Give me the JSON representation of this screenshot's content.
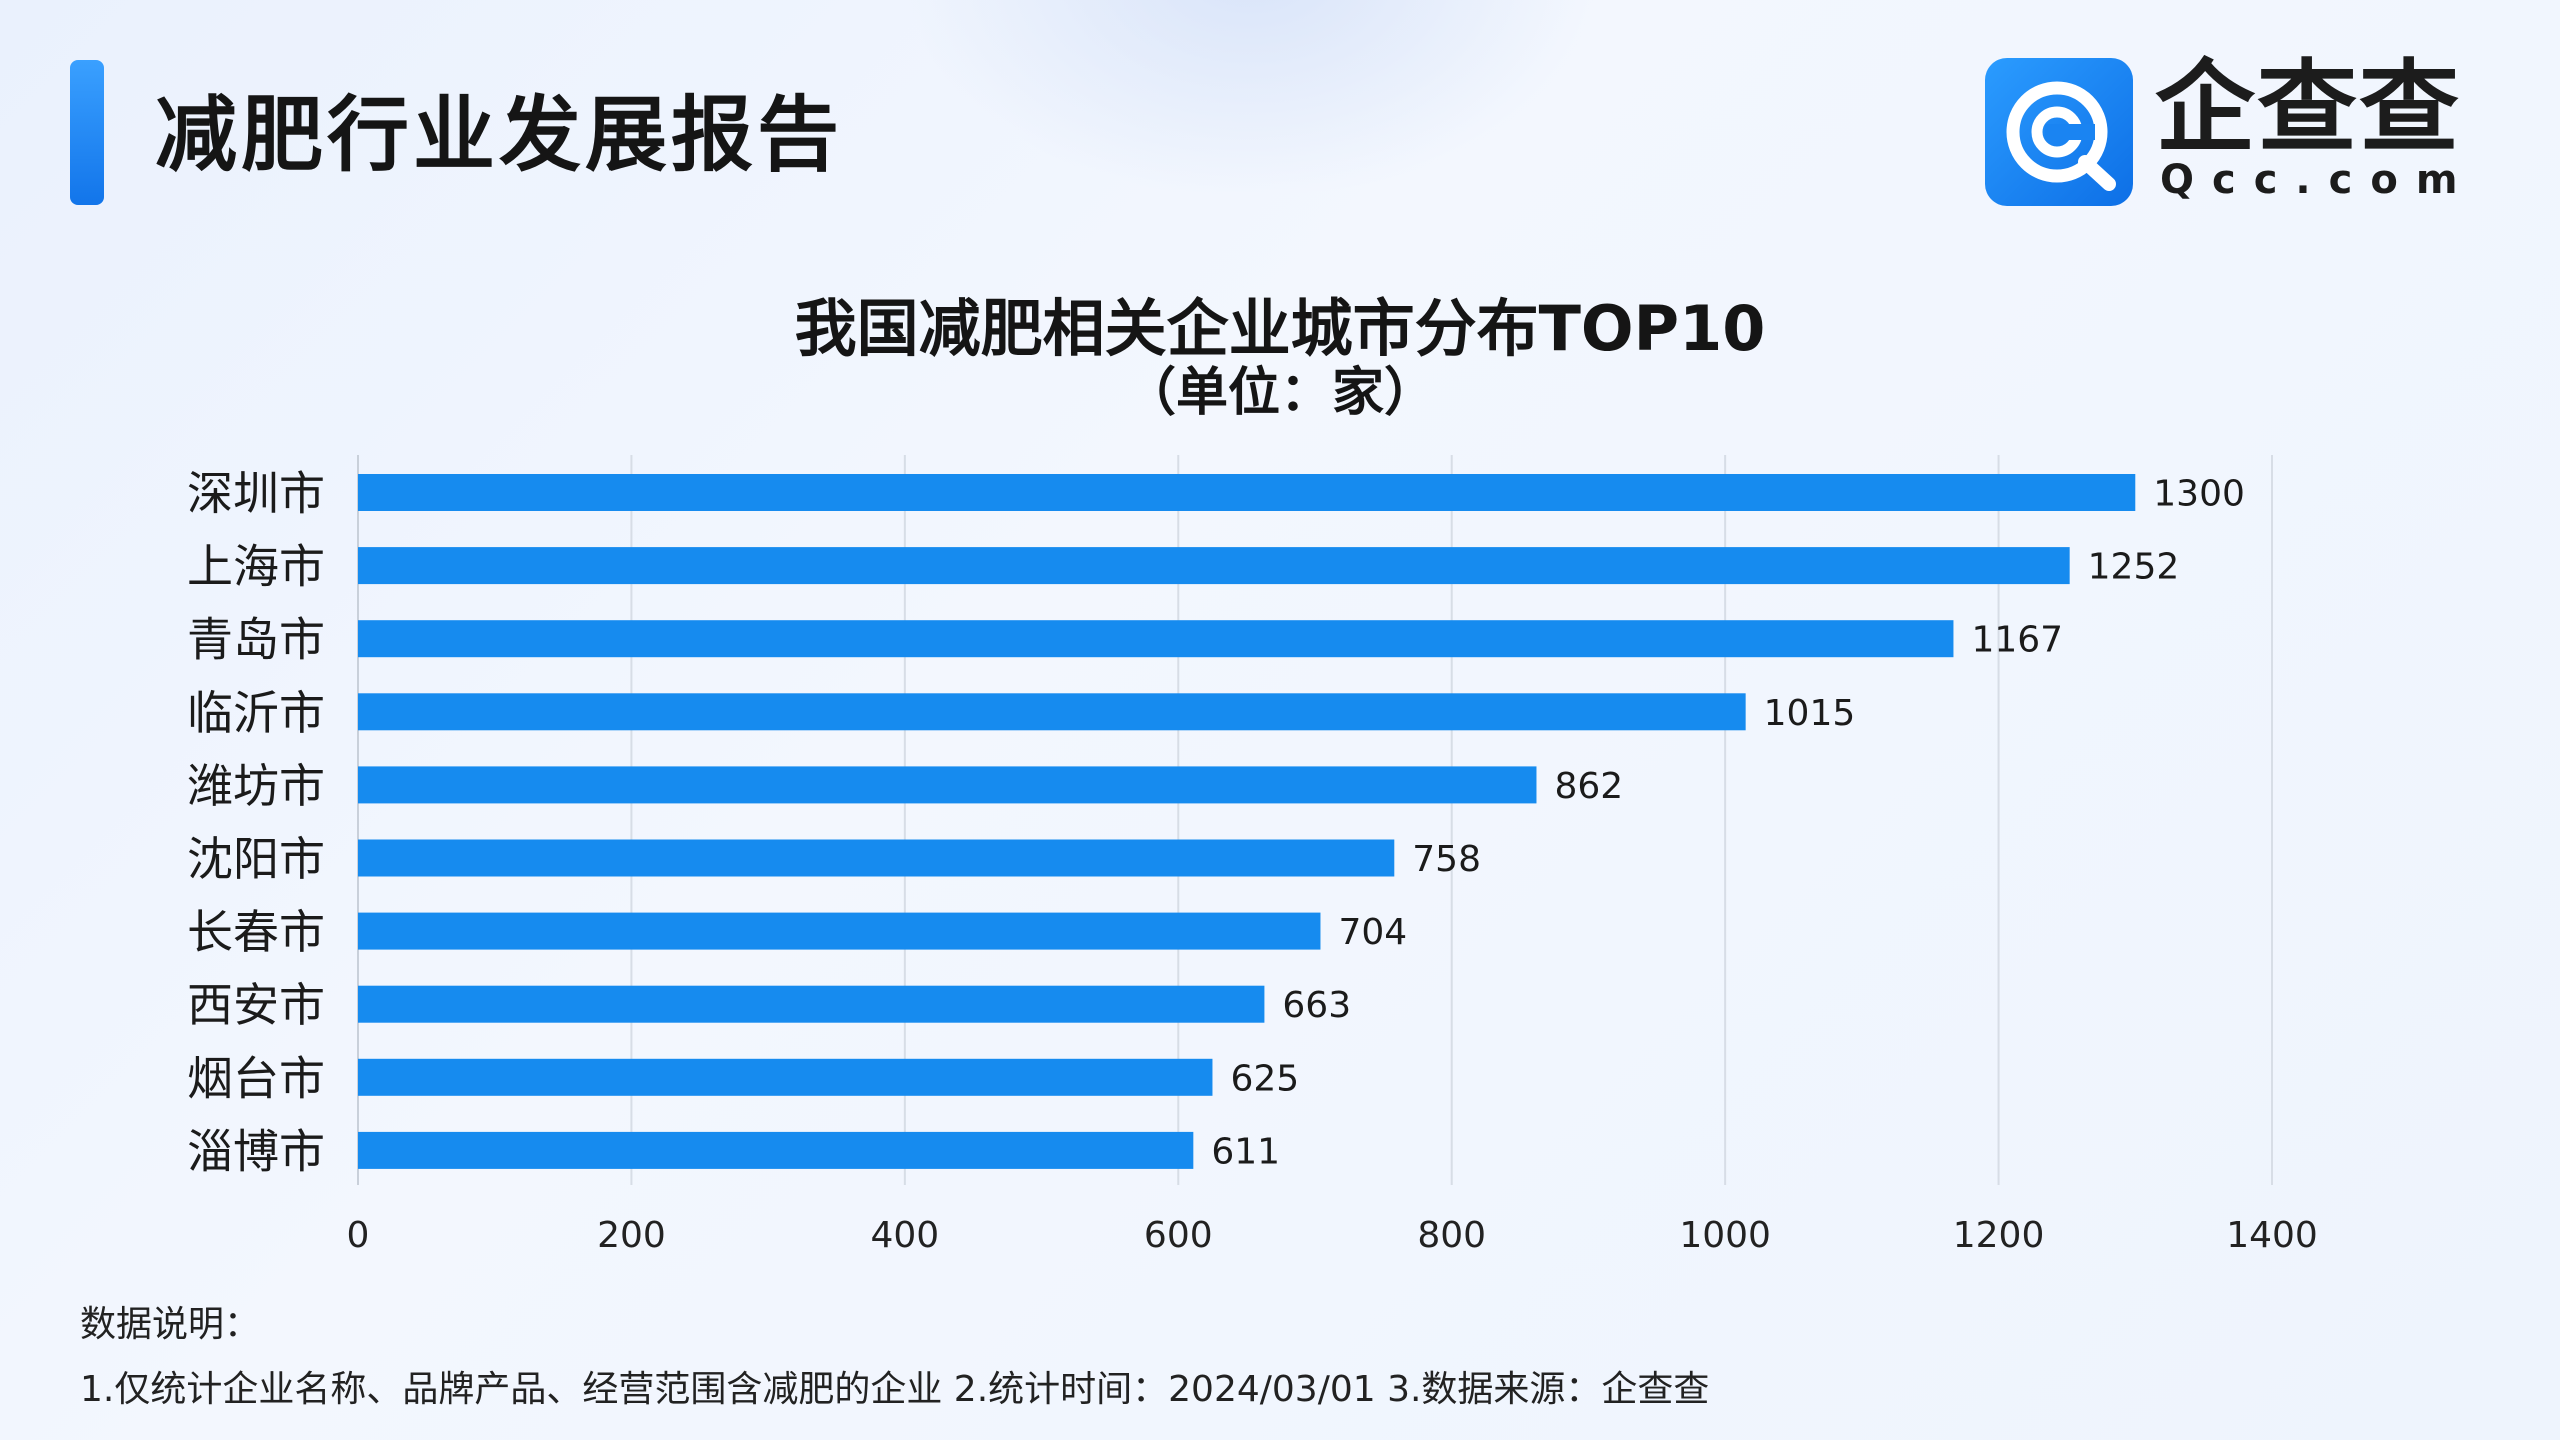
{
  "header": {
    "title": "减肥行业发展报告",
    "logo_text": "企查查",
    "logo_sub": "Qcc.com"
  },
  "chart_title": "我国减肥相关企业城市分布TOP10",
  "chart_subtitle": "（单位：家）",
  "chart_data": {
    "type": "bar",
    "orientation": "horizontal",
    "title": "我国减肥相关企业城市分布TOP10",
    "subtitle": "（单位：家）",
    "categories": [
      "深圳市",
      "上海市",
      "青岛市",
      "临沂市",
      "潍坊市",
      "沈阳市",
      "长春市",
      "西安市",
      "烟台市",
      "淄博市"
    ],
    "values": [
      1300,
      1252,
      1167,
      1015,
      862,
      758,
      704,
      663,
      625,
      611
    ],
    "xlim": [
      0,
      1400
    ],
    "xticks": [
      0,
      200,
      400,
      600,
      800,
      1000,
      1200,
      1400
    ],
    "grid": true,
    "bar_color": "#168bef",
    "data_labels": true
  },
  "notes": {
    "title": "数据说明：",
    "body": "1.仅统计企业名称、品牌产品、经营范围含减肥的企业   2.统计时间：2024/03/01    3.数据来源：企查查"
  },
  "colors": {
    "accent": "#1a7ff0",
    "bar": "#168bef",
    "grid": "#d7dde6",
    "text": "#1b1b1b"
  }
}
